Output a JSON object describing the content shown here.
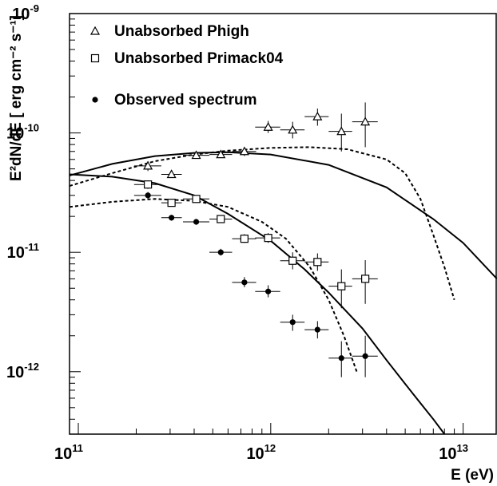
{
  "chart_data": {
    "type": "scatter",
    "title": "",
    "xlabel": "E (eV)",
    "ylabel": "E²dN/dE [ erg cm⁻² s⁻¹]",
    "x_scale": "log",
    "y_scale": "log",
    "xlim": [
      90000000000.0,
      15000000000000.0
    ],
    "ylim": [
      3e-13,
      1e-09
    ],
    "x_ticks": [
      {
        "value": 100000000000.0,
        "base": "10",
        "exp": "11"
      },
      {
        "value": 1000000000000.0,
        "base": "10",
        "exp": "12"
      },
      {
        "value": 10000000000000.0,
        "base": "10",
        "exp": "13"
      }
    ],
    "y_ticks": [
      {
        "value": 1e-12,
        "base": "10",
        "exp": "-12"
      },
      {
        "value": 1e-11,
        "base": "10",
        "exp": "-11"
      },
      {
        "value": 1e-10,
        "base": "10",
        "exp": "-10"
      },
      {
        "value": 1e-09,
        "base": "10",
        "exp": "-9"
      }
    ],
    "grid": false,
    "legend_position": "top-left",
    "series": [
      {
        "name": "Unabsorbed Phigh",
        "marker": "open-triangle",
        "points": [
          {
            "x": 230000000000.0,
            "y": 5.3e-11,
            "xlo": 195000000000.0,
            "xhi": 270000000000.0,
            "ylo": 4.8e-11,
            "yhi": 5.8e-11
          },
          {
            "x": 305000000000.0,
            "y": 4.5e-11,
            "xlo": 270000000000.0,
            "xhi": 345000000000.0,
            "ylo": 4.2e-11,
            "yhi": 4.9e-11
          },
          {
            "x": 410000000000.0,
            "y": 6.5e-11,
            "xlo": 350000000000.0,
            "xhi": 480000000000.0,
            "ylo": 6.1e-11,
            "yhi": 6.9e-11
          },
          {
            "x": 550000000000.0,
            "y": 6.6e-11,
            "xlo": 480000000000.0,
            "xhi": 630000000000.0,
            "ylo": 6.2e-11,
            "yhi": 7.1e-11
          },
          {
            "x": 730000000000.0,
            "y": 7e-11,
            "xlo": 630000000000.0,
            "xhi": 840000000000.0,
            "ylo": 6.4e-11,
            "yhi": 7.6e-11
          },
          {
            "x": 970000000000.0,
            "y": 1.12e-10,
            "xlo": 830000000000.0,
            "xhi": 1120000000000.0,
            "ylo": 1e-10,
            "yhi": 1.26e-10
          },
          {
            "x": 1300000000000.0,
            "y": 1.06e-10,
            "xlo": 1120000000000.0,
            "xhi": 1500000000000.0,
            "ylo": 9e-11,
            "yhi": 1.24e-10
          },
          {
            "x": 1750000000000.0,
            "y": 1.37e-10,
            "xlo": 1500000000000.0,
            "xhi": 2000000000000.0,
            "ylo": 1.15e-10,
            "yhi": 1.6e-10
          },
          {
            "x": 2330000000000.0,
            "y": 1.03e-10,
            "xlo": 2000000000000.0,
            "xhi": 2650000000000.0,
            "ylo": 7e-11,
            "yhi": 1.45e-10
          },
          {
            "x": 3100000000000.0,
            "y": 1.24e-10,
            "xlo": 2650000000000.0,
            "xhi": 3600000000000.0,
            "ylo": 7.6e-11,
            "yhi": 1.8e-10
          }
        ]
      },
      {
        "name": "Unabsorbed Primack04",
        "marker": "open-square",
        "points": [
          {
            "x": 230000000000.0,
            "y": 3.7e-11,
            "xlo": 195000000000.0,
            "xhi": 270000000000.0,
            "ylo": 3.4e-11,
            "yhi": 4e-11
          },
          {
            "x": 305000000000.0,
            "y": 2.6e-11,
            "xlo": 270000000000.0,
            "xhi": 345000000000.0,
            "ylo": 2.45e-11,
            "yhi": 2.75e-11
          },
          {
            "x": 410000000000.0,
            "y": 2.8e-11,
            "xlo": 350000000000.0,
            "xhi": 480000000000.0,
            "ylo": 2.65e-11,
            "yhi": 2.95e-11
          },
          {
            "x": 550000000000.0,
            "y": 1.9e-11,
            "xlo": 480000000000.0,
            "xhi": 630000000000.0,
            "ylo": 1.78e-11,
            "yhi": 2.02e-11
          },
          {
            "x": 730000000000.0,
            "y": 1.3e-11,
            "xlo": 630000000000.0,
            "xhi": 840000000000.0,
            "ylo": 1.2e-11,
            "yhi": 1.42e-11
          },
          {
            "x": 970000000000.0,
            "y": 1.32e-11,
            "xlo": 830000000000.0,
            "xhi": 1120000000000.0,
            "ylo": 1.2e-11,
            "yhi": 1.45e-11
          },
          {
            "x": 1300000000000.0,
            "y": 8.5e-12,
            "xlo": 1120000000000.0,
            "xhi": 1500000000000.0,
            "ylo": 7.2e-12,
            "yhi": 1e-11
          },
          {
            "x": 1750000000000.0,
            "y": 8.3e-12,
            "xlo": 1500000000000.0,
            "xhi": 2000000000000.0,
            "ylo": 7e-12,
            "yhi": 9.8e-12
          },
          {
            "x": 2330000000000.0,
            "y": 5.2e-12,
            "xlo": 2000000000000.0,
            "xhi": 2650000000000.0,
            "ylo": 3.4e-12,
            "yhi": 7.2e-12
          },
          {
            "x": 3100000000000.0,
            "y": 6e-12,
            "xlo": 2650000000000.0,
            "xhi": 3600000000000.0,
            "ylo": 3.7e-12,
            "yhi": 8.6e-12
          }
        ]
      },
      {
        "name": "Observed spectrum",
        "marker": "filled-circle",
        "points": [
          {
            "x": 230000000000.0,
            "y": 3e-11,
            "xlo": 195000000000.0,
            "xhi": 270000000000.0,
            "ylo": 2.8e-11,
            "yhi": 3.2e-11
          },
          {
            "x": 305000000000.0,
            "y": 1.95e-11,
            "xlo": 270000000000.0,
            "xhi": 345000000000.0,
            "ylo": 1.84e-11,
            "yhi": 2.06e-11
          },
          {
            "x": 410000000000.0,
            "y": 1.8e-11,
            "xlo": 350000000000.0,
            "xhi": 480000000000.0,
            "ylo": 1.7e-11,
            "yhi": 1.9e-11
          },
          {
            "x": 550000000000.0,
            "y": 1e-11,
            "xlo": 480000000000.0,
            "xhi": 630000000000.0,
            "ylo": 9.4e-12,
            "yhi": 1.07e-11
          },
          {
            "x": 730000000000.0,
            "y": 5.6e-12,
            "xlo": 630000000000.0,
            "xhi": 840000000000.0,
            "ylo": 5.1e-12,
            "yhi": 6.2e-12
          },
          {
            "x": 970000000000.0,
            "y": 4.7e-12,
            "xlo": 830000000000.0,
            "xhi": 1120000000000.0,
            "ylo": 4.2e-12,
            "yhi": 5.3e-12
          },
          {
            "x": 1300000000000.0,
            "y": 2.6e-12,
            "xlo": 1120000000000.0,
            "xhi": 1500000000000.0,
            "ylo": 2.2e-12,
            "yhi": 3e-12
          },
          {
            "x": 1750000000000.0,
            "y": 2.25e-12,
            "xlo": 1500000000000.0,
            "xhi": 2000000000000.0,
            "ylo": 1.9e-12,
            "yhi": 2.65e-12
          },
          {
            "x": 2330000000000.0,
            "y": 1.3e-12,
            "xlo": 2000000000000.0,
            "xhi": 2650000000000.0,
            "ylo": 9e-13,
            "yhi": 1.8e-12
          },
          {
            "x": 3100000000000.0,
            "y": 1.35e-12,
            "xlo": 2650000000000.0,
            "xhi": 3600000000000.0,
            "ylo": 9e-13,
            "yhi": 2e-12
          }
        ]
      }
    ],
    "curves": [
      {
        "style": "solid",
        "points": [
          [
            90000000000.0,
            4.4e-11
          ],
          [
            150000000000.0,
            5.5e-11
          ],
          [
            250000000000.0,
            6.4e-11
          ],
          [
            400000000000.0,
            6.8e-11
          ],
          [
            600000000000.0,
            6.9e-11
          ],
          [
            1000000000000.0,
            6.6e-11
          ],
          [
            2000000000000.0,
            5.4e-11
          ],
          [
            4000000000000.0,
            3.5e-11
          ],
          [
            7000000000000.0,
            1.9e-11
          ],
          [
            10000000000000.0,
            1.2e-11
          ],
          [
            15000000000000.0,
            6e-12
          ]
        ]
      },
      {
        "style": "solid",
        "points": [
          [
            90000000000.0,
            4.5e-11
          ],
          [
            150000000000.0,
            4.3e-11
          ],
          [
            250000000000.0,
            3.8e-11
          ],
          [
            400000000000.0,
            3e-11
          ],
          [
            600000000000.0,
            2.1e-11
          ],
          [
            1000000000000.0,
            1.25e-11
          ],
          [
            1500000000000.0,
            7.2e-12
          ],
          [
            2000000000000.0,
            4.6e-12
          ],
          [
            3000000000000.0,
            2.3e-12
          ],
          [
            4000000000000.0,
            1.25e-12
          ],
          [
            5500000000000.0,
            6.5e-13
          ],
          [
            7000000000000.0,
            4e-13
          ],
          [
            8000000000000.0,
            3e-13
          ]
        ]
      },
      {
        "style": "dashed",
        "points": [
          [
            90000000000.0,
            3.6e-11
          ],
          [
            150000000000.0,
            4.6e-11
          ],
          [
            250000000000.0,
            5.8e-11
          ],
          [
            400000000000.0,
            6.6e-11
          ],
          [
            600000000000.0,
            7.1e-11
          ],
          [
            1000000000000.0,
            7.5e-11
          ],
          [
            1600000000000.0,
            7.6e-11
          ],
          [
            2500000000000.0,
            7.3e-11
          ],
          [
            4000000000000.0,
            6e-11
          ],
          [
            5000000000000.0,
            4.6e-11
          ],
          [
            6000000000000.0,
            2.8e-11
          ],
          [
            7000000000000.0,
            1.4e-11
          ],
          [
            8000000000000.0,
            7.5e-12
          ],
          [
            9000000000000.0,
            4e-12
          ]
        ]
      },
      {
        "style": "dashed",
        "points": [
          [
            90000000000.0,
            2.4e-11
          ],
          [
            150000000000.0,
            2.65e-11
          ],
          [
            250000000000.0,
            2.8e-11
          ],
          [
            400000000000.0,
            2.7e-11
          ],
          [
            600000000000.0,
            2.4e-11
          ],
          [
            900000000000.0,
            1.8e-11
          ],
          [
            1200000000000.0,
            1.3e-11
          ],
          [
            1600000000000.0,
            7.5e-12
          ],
          [
            2000000000000.0,
            4e-12
          ],
          [
            2400000000000.0,
            2e-12
          ],
          [
            2800000000000.0,
            1e-12
          ]
        ]
      }
    ]
  },
  "colors": {
    "ink": "#000000",
    "background": "#ffffff"
  }
}
